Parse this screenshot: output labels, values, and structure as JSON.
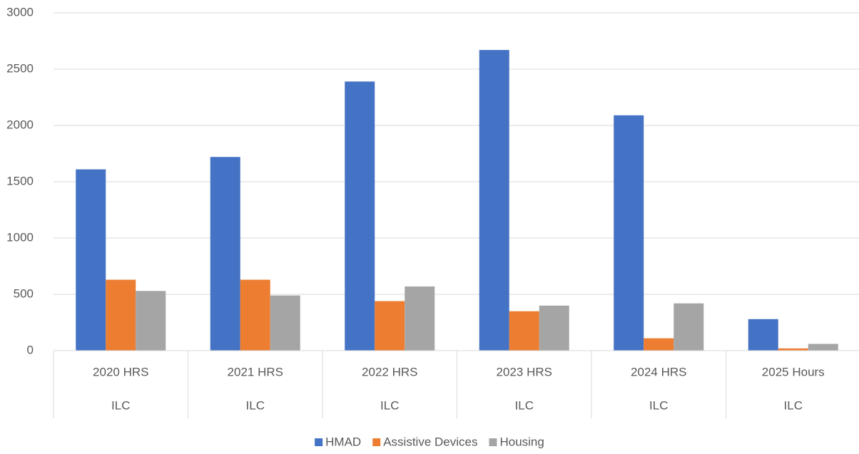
{
  "chart_data": {
    "type": "bar",
    "categories": [
      "2020 HRS",
      "2021 HRS",
      "2022 HRS",
      "2023 HRS",
      "2024 HRS",
      "2025 Hours"
    ],
    "category_groups": [
      "ILC",
      "ILC",
      "ILC",
      "ILC",
      "ILC",
      "ILC"
    ],
    "series": [
      {
        "name": "HMAD",
        "color": "#4472c4",
        "values": [
          1610,
          1720,
          2390,
          2670,
          2090,
          280
        ]
      },
      {
        "name": "Assistive Devices",
        "color": "#ed7d31",
        "values": [
          630,
          630,
          440,
          350,
          110,
          20
        ]
      },
      {
        "name": "Housing",
        "color": "#a5a5a5",
        "values": [
          530,
          490,
          570,
          400,
          420,
          60
        ]
      }
    ],
    "ylim": [
      0,
      3000
    ],
    "yticks": [
      0,
      500,
      1000,
      1500,
      2000,
      2500,
      3000
    ],
    "grid": true,
    "legend": "bottom"
  }
}
